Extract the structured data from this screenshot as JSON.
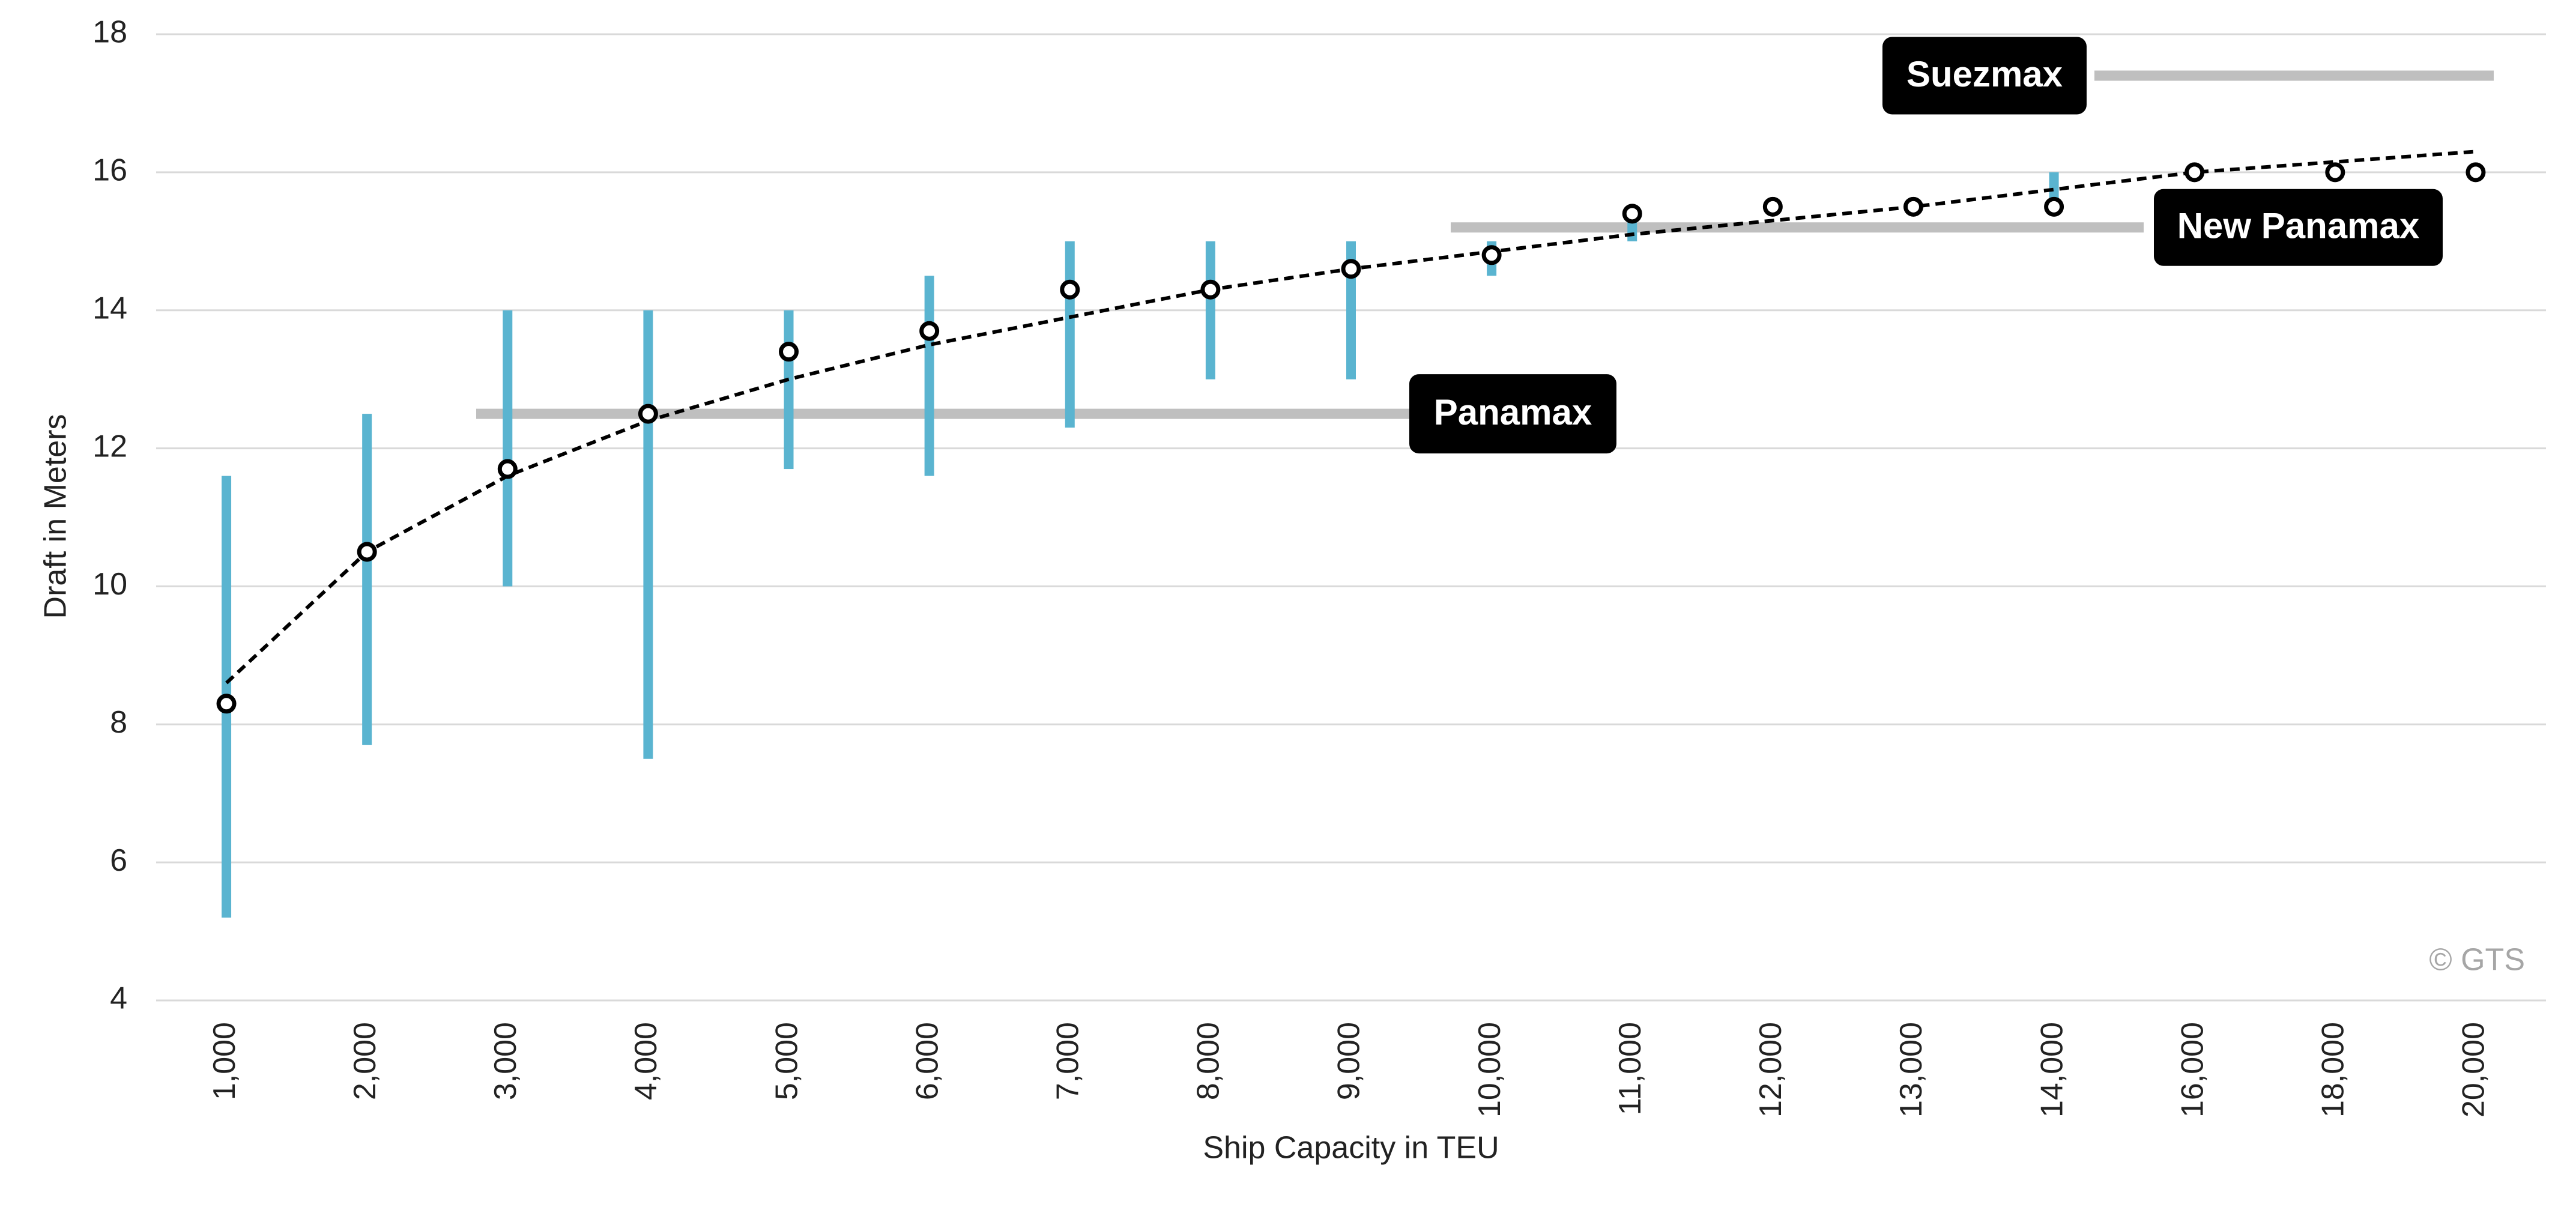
{
  "chart_data": {
    "type": "range-mean",
    "x_label": "Ship Capacity in TEU",
    "y_label": "Draft in Meters",
    "watermark": "© GTS",
    "categories": [
      "1,000",
      "2,000",
      "3,000",
      "4,000",
      "5,000",
      "6,000",
      "7,000",
      "8,000",
      "9,000",
      "10,000",
      "11,000",
      "12,000",
      "13,000",
      "14,000",
      "16,000",
      "18,000",
      "20,000"
    ],
    "mean": {
      "color": "#000000",
      "values": [
        8.3,
        10.5,
        11.7,
        12.5,
        13.4,
        13.7,
        14.3,
        14.3,
        14.6,
        14.8,
        15.4,
        15.5,
        15.5,
        15.5,
        16.0,
        16.0,
        16.0
      ]
    },
    "range": {
      "color": "#5ab4d0",
      "low": [
        5.2,
        7.7,
        10.0,
        7.5,
        11.7,
        11.6,
        12.3,
        13.0,
        13.0,
        14.5,
        15.0,
        null,
        null,
        15.6,
        null,
        null,
        null
      ],
      "high": [
        11.6,
        12.5,
        14.0,
        14.0,
        14.0,
        14.5,
        15.0,
        15.0,
        15.0,
        15.0,
        15.5,
        null,
        null,
        16.0,
        null,
        null,
        null
      ]
    },
    "trendline": {
      "color": "#000000",
      "values": [
        8.6,
        10.5,
        11.6,
        12.4,
        13.0,
        13.5,
        13.9,
        14.3,
        14.6,
        14.85,
        15.1,
        15.3,
        15.5,
        15.75,
        16.0,
        16.15,
        16.3
      ]
    },
    "reference_lines": [
      {
        "label": "Panamax",
        "value": 12.5
      },
      {
        "label": "New Panamax",
        "value": 15.2
      },
      {
        "label": "Suezmax",
        "value": 17.4
      }
    ],
    "reference_color": "#bfbfbf",
    "ylim": [
      4,
      18
    ],
    "yticks": [
      4,
      6,
      8,
      10,
      12,
      14,
      16,
      18
    ],
    "grid": true
  }
}
